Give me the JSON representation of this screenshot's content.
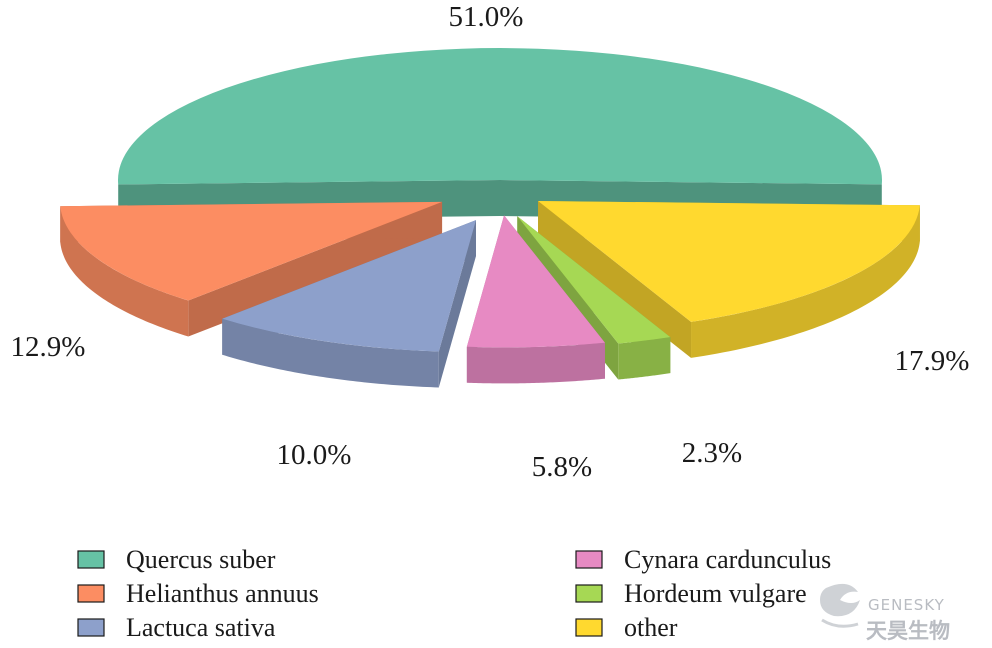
{
  "chart_data": {
    "type": "pie",
    "subtype": "3d-exploded",
    "series": [
      {
        "label": "Quercus suber",
        "value": 51.0,
        "value_label": "51.0%",
        "color": "#66c2a5"
      },
      {
        "label": "Helianthus annuus",
        "value": 12.9,
        "value_label": "12.9%",
        "color": "#fc8d62"
      },
      {
        "label": "Lactuca sativa",
        "value": 10.0,
        "value_label": "10.0%",
        "color": "#8da0cb"
      },
      {
        "label": "Cynara cardunculus",
        "value": 5.8,
        "value_label": "5.8%",
        "color": "#e78ac3"
      },
      {
        "label": "Hordeum vulgare",
        "value": 2.3,
        "value_label": "2.3%",
        "color": "#a6d854"
      },
      {
        "label": "other",
        "value": 17.9,
        "value_label": "17.9%",
        "color": "#ffd92f"
      }
    ],
    "legend_position": "bottom"
  },
  "watermark": {
    "brand": "GENESKY",
    "brand_cn": "天昊生物"
  }
}
